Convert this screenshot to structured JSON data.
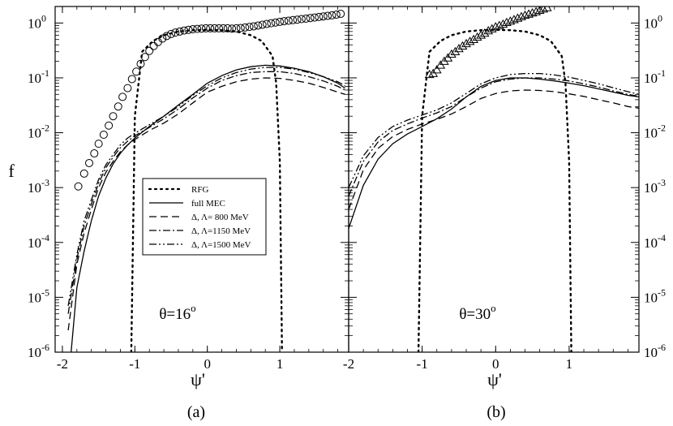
{
  "chart_data": [
    {
      "type": "line",
      "panel_label": "(a)",
      "annotation": "θ=16",
      "annotation_sup": "o",
      "xlabel": "ψ'",
      "ylabel": "f",
      "xlim": [
        -2.1,
        1.95
      ],
      "ylim": [
        1e-06,
        2
      ],
      "yscale": "log",
      "x_ticks": [
        "-2",
        "-1",
        "0",
        "1"
      ],
      "y_ticks": [
        {
          "base": "10",
          "exp": "-6"
        },
        {
          "base": "10",
          "exp": "-5"
        },
        {
          "base": "10",
          "exp": "-4"
        },
        {
          "base": "10",
          "exp": "-3"
        },
        {
          "base": "10",
          "exp": "-2"
        },
        {
          "base": "10",
          "exp": "-1"
        },
        {
          "base": "10",
          "exp": "0"
        }
      ],
      "grid": false,
      "legend": {
        "placement": "center-left",
        "entries": [
          {
            "key": "rfg",
            "label": "RFG",
            "style": "dotted"
          },
          {
            "key": "full",
            "label": "full MEC",
            "style": "solid"
          },
          {
            "key": "l800",
            "label": "Δ, Λ= 800 MeV",
            "style": "dashed"
          },
          {
            "key": "l1150",
            "label": "Δ, Λ=1150 MeV",
            "style": "dashdot"
          },
          {
            "key": "l1500",
            "label": "Δ, Λ=1500 MeV",
            "style": "dashdotdot"
          }
        ]
      },
      "series": [
        {
          "key": "rfg",
          "style": "dotted",
          "x": [
            -1.05,
            -1.0,
            -0.9,
            -0.75,
            -0.6,
            -0.4,
            -0.2,
            0.0,
            0.2,
            0.4,
            0.6,
            0.75,
            0.9,
            0.95,
            1.0,
            1.03
          ],
          "y": [
            1e-06,
            0.02,
            0.3,
            0.47,
            0.6,
            0.7,
            0.74,
            0.75,
            0.74,
            0.7,
            0.6,
            0.47,
            0.25,
            0.08,
            0.003,
            1e-06
          ]
        },
        {
          "key": "full",
          "style": "solid",
          "x": [
            -1.88,
            -1.8,
            -1.7,
            -1.6,
            -1.5,
            -1.4,
            -1.3,
            -1.2,
            -1.1,
            -1.0,
            -0.8,
            -0.6,
            -0.4,
            -0.2,
            0.0,
            0.2,
            0.4,
            0.6,
            0.8,
            1.0,
            1.2,
            1.4,
            1.6,
            1.8,
            1.9
          ],
          "y": [
            1e-06,
            1.5e-05,
            7e-05,
            0.00025,
            0.0007,
            0.0015,
            0.0027,
            0.0042,
            0.006,
            0.008,
            0.013,
            0.02,
            0.032,
            0.05,
            0.08,
            0.11,
            0.14,
            0.16,
            0.17,
            0.165,
            0.15,
            0.13,
            0.105,
            0.08,
            0.065
          ]
        },
        {
          "key": "l800",
          "style": "dashed",
          "x": [
            -1.92,
            -1.8,
            -1.7,
            -1.6,
            -1.5,
            -1.4,
            -1.3,
            -1.2,
            -1.1,
            -1.0,
            -0.8,
            -0.6,
            -0.4,
            -0.2,
            0.0,
            0.2,
            0.4,
            0.6,
            0.8,
            1.0,
            1.2,
            1.4,
            1.6,
            1.8,
            1.9
          ],
          "y": [
            2.5e-06,
            4e-05,
            0.00015,
            0.0004,
            0.001,
            0.0019,
            0.003,
            0.0045,
            0.006,
            0.0075,
            0.011,
            0.015,
            0.022,
            0.035,
            0.055,
            0.07,
            0.085,
            0.095,
            0.1,
            0.098,
            0.09,
            0.08,
            0.067,
            0.055,
            0.05
          ]
        },
        {
          "key": "l1150",
          "style": "dashdot",
          "x": [
            -1.92,
            -1.8,
            -1.7,
            -1.6,
            -1.5,
            -1.4,
            -1.3,
            -1.2,
            -1.1,
            -1.0,
            -0.8,
            -0.6,
            -0.4,
            -0.2,
            0.0,
            0.2,
            0.4,
            0.6,
            0.8,
            1.0,
            1.2,
            1.4,
            1.6,
            1.8,
            1.9
          ],
          "y": [
            5e-06,
            5e-05,
            0.0002,
            0.0005,
            0.0012,
            0.0023,
            0.0036,
            0.0053,
            0.007,
            0.0088,
            0.0125,
            0.018,
            0.027,
            0.043,
            0.065,
            0.09,
            0.11,
            0.125,
            0.13,
            0.13,
            0.12,
            0.105,
            0.088,
            0.07,
            0.06
          ]
        },
        {
          "key": "l1500",
          "style": "dashdotdot",
          "x": [
            -1.92,
            -1.8,
            -1.7,
            -1.6,
            -1.5,
            -1.4,
            -1.3,
            -1.2,
            -1.1,
            -1.0,
            -0.8,
            -0.6,
            -0.4,
            -0.2,
            0.0,
            0.2,
            0.4,
            0.6,
            0.8,
            1.0,
            1.2,
            1.4,
            1.6,
            1.8,
            1.9
          ],
          "y": [
            7e-06,
            6e-05,
            0.00025,
            0.0006,
            0.0014,
            0.0026,
            0.004,
            0.006,
            0.008,
            0.0098,
            0.014,
            0.02,
            0.03,
            0.048,
            0.072,
            0.1,
            0.125,
            0.145,
            0.155,
            0.155,
            0.145,
            0.125,
            0.105,
            0.085,
            0.072
          ]
        },
        {
          "key": "data",
          "style": "circles",
          "x": [
            -1.78,
            -1.7,
            -1.63,
            -1.56,
            -1.5,
            -1.43,
            -1.36,
            -1.3,
            -1.23,
            -1.17,
            -1.1,
            -1.04,
            -0.98,
            -0.92,
            -0.86,
            -0.8,
            -0.74,
            -0.68,
            -0.62,
            -0.56,
            -0.5,
            -0.44,
            -0.38,
            -0.32,
            -0.26,
            -0.2,
            -0.14,
            -0.08,
            -0.02,
            0.04,
            0.1,
            0.16,
            0.22,
            0.28,
            0.34,
            0.4,
            0.46,
            0.52,
            0.58,
            0.64,
            0.7,
            0.76,
            0.82,
            0.88,
            0.94,
            1.0,
            1.06,
            1.12,
            1.18,
            1.24,
            1.3,
            1.36,
            1.42,
            1.48,
            1.54,
            1.6,
            1.66,
            1.72,
            1.78,
            1.84
          ],
          "y": [
            0.00105,
            0.0018,
            0.0028,
            0.0042,
            0.0063,
            0.0092,
            0.0135,
            0.02,
            0.03,
            0.045,
            0.065,
            0.095,
            0.13,
            0.18,
            0.24,
            0.31,
            0.38,
            0.45,
            0.52,
            0.58,
            0.63,
            0.67,
            0.7,
            0.73,
            0.75,
            0.77,
            0.78,
            0.79,
            0.8,
            0.8,
            0.8,
            0.8,
            0.8,
            0.8,
            0.79,
            0.8,
            0.81,
            0.83,
            0.85,
            0.87,
            0.9,
            0.93,
            0.96,
            0.99,
            1.02,
            1.05,
            1.08,
            1.1,
            1.13,
            1.15,
            1.18,
            1.2,
            1.23,
            1.26,
            1.29,
            1.32,
            1.35,
            1.38,
            1.42,
            1.47
          ]
        }
      ]
    },
    {
      "type": "line",
      "panel_label": "(b)",
      "annotation": "θ=30",
      "annotation_sup": "o",
      "xlabel": "ψ'",
      "xlim": [
        -2.0,
        1.95
      ],
      "ylim": [
        1e-06,
        2
      ],
      "yscale": "log",
      "x_ticks": [
        "-2",
        "-1",
        "0",
        "1"
      ],
      "y_ticks": [
        {
          "base": "10",
          "exp": "-6"
        },
        {
          "base": "10",
          "exp": "-5"
        },
        {
          "base": "10",
          "exp": "-4"
        },
        {
          "base": "10",
          "exp": "-3"
        },
        {
          "base": "10",
          "exp": "-2"
        },
        {
          "base": "10",
          "exp": "-1"
        },
        {
          "base": "10",
          "exp": "0"
        }
      ],
      "grid": false,
      "series": [
        {
          "key": "rfg",
          "style": "dotted",
          "x": [
            -1.05,
            -1.0,
            -0.9,
            -0.75,
            -0.6,
            -0.4,
            -0.2,
            0.0,
            0.2,
            0.4,
            0.6,
            0.75,
            0.9,
            0.95,
            1.0,
            1.03
          ],
          "y": [
            1e-06,
            0.02,
            0.3,
            0.47,
            0.6,
            0.7,
            0.74,
            0.75,
            0.74,
            0.7,
            0.6,
            0.47,
            0.25,
            0.08,
            0.003,
            1e-06
          ]
        },
        {
          "key": "full",
          "style": "solid",
          "x": [
            -2.0,
            -1.8,
            -1.6,
            -1.4,
            -1.2,
            -1.0,
            -0.8,
            -0.6,
            -0.4,
            -0.2,
            0.0,
            0.2,
            0.4,
            0.6,
            0.8,
            1.0,
            1.2,
            1.4,
            1.6,
            1.8,
            1.95
          ],
          "y": [
            0.00018,
            0.0011,
            0.0033,
            0.0063,
            0.0095,
            0.013,
            0.018,
            0.027,
            0.045,
            0.07,
            0.09,
            0.1,
            0.1,
            0.095,
            0.088,
            0.08,
            0.072,
            0.063,
            0.055,
            0.048,
            0.045
          ]
        },
        {
          "key": "l800",
          "style": "dashed",
          "x": [
            -2.0,
            -1.8,
            -1.6,
            -1.4,
            -1.2,
            -1.0,
            -0.8,
            -0.6,
            -0.4,
            -0.2,
            0.0,
            0.2,
            0.4,
            0.6,
            0.8,
            1.0,
            1.2,
            1.4,
            1.6,
            1.8,
            1.95
          ],
          "y": [
            0.0004,
            0.0021,
            0.0052,
            0.0085,
            0.0115,
            0.0145,
            0.0175,
            0.022,
            0.03,
            0.042,
            0.052,
            0.058,
            0.06,
            0.059,
            0.056,
            0.051,
            0.046,
            0.04,
            0.035,
            0.03,
            0.028
          ]
        },
        {
          "key": "l1150",
          "style": "dashdot",
          "x": [
            -2.0,
            -1.8,
            -1.6,
            -1.4,
            -1.2,
            -1.0,
            -0.8,
            -0.6,
            -0.4,
            -0.2,
            0.0,
            0.2,
            0.4,
            0.6,
            0.8,
            1.0,
            1.2,
            1.4,
            1.6,
            1.8,
            1.95
          ],
          "y": [
            0.0007,
            0.003,
            0.0068,
            0.011,
            0.0145,
            0.0185,
            0.023,
            0.03,
            0.045,
            0.065,
            0.085,
            0.095,
            0.1,
            0.1,
            0.095,
            0.088,
            0.078,
            0.068,
            0.058,
            0.05,
            0.046
          ]
        },
        {
          "key": "l1500",
          "style": "dashdotdot",
          "x": [
            -2.0,
            -1.8,
            -1.6,
            -1.4,
            -1.2,
            -1.0,
            -0.8,
            -0.6,
            -0.4,
            -0.2,
            0.0,
            0.2,
            0.4,
            0.6,
            0.8,
            1.0,
            1.2,
            1.4,
            1.6,
            1.8,
            1.95
          ],
          "y": [
            0.001,
            0.0038,
            0.0082,
            0.013,
            0.017,
            0.021,
            0.026,
            0.035,
            0.052,
            0.078,
            0.1,
            0.115,
            0.12,
            0.12,
            0.113,
            0.103,
            0.09,
            0.078,
            0.066,
            0.056,
            0.05
          ]
        },
        {
          "key": "data",
          "style": "triangles",
          "x": [
            -0.9,
            -0.85,
            -0.8,
            -0.75,
            -0.7,
            -0.65,
            -0.6,
            -0.55,
            -0.5,
            -0.45,
            -0.4,
            -0.35,
            -0.3,
            -0.25,
            -0.2,
            -0.15,
            -0.1,
            -0.05,
            0.0,
            0.05,
            0.1,
            0.15,
            0.2,
            0.25,
            0.3,
            0.35,
            0.4,
            0.45,
            0.5,
            0.55,
            0.6,
            0.65,
            0.7
          ],
          "y": [
            0.115,
            0.12,
            0.14,
            0.17,
            0.2,
            0.23,
            0.27,
            0.3,
            0.34,
            0.38,
            0.42,
            0.46,
            0.5,
            0.55,
            0.6,
            0.65,
            0.72,
            0.78,
            0.85,
            0.9,
            0.95,
            1.02,
            1.08,
            1.15,
            1.22,
            1.3,
            1.38,
            1.45,
            1.52,
            1.6,
            1.7,
            1.8,
            1.9
          ]
        }
      ]
    }
  ]
}
